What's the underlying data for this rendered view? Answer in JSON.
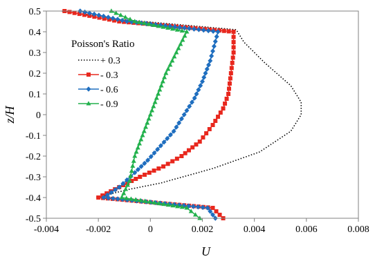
{
  "chart_data": {
    "type": "line",
    "title": "",
    "xlabel": "U",
    "ylabel": "z/H",
    "xlim": [
      -0.004,
      0.008
    ],
    "ylim": [
      -0.5,
      0.5
    ],
    "x_ticks": [
      -0.004,
      -0.002,
      0,
      0.002,
      0.004,
      0.006,
      0.008
    ],
    "x_tick_labels": [
      "-0.004",
      "-0.002",
      "0",
      "0.002",
      "0.004",
      "0.006",
      "0.008"
    ],
    "y_ticks": [
      -0.5,
      -0.4,
      -0.3,
      -0.2,
      -0.1,
      0,
      0.1,
      0.2,
      0.3,
      0.4,
      0.5
    ],
    "y_tick_labels": [
      "-0.5",
      "-0.4",
      "-0.3",
      "-0.2",
      "-0.1",
      "0",
      "0.1",
      "0.2",
      "0.3",
      "0.4",
      "0.5"
    ],
    "grid": false,
    "legend": {
      "title": "Poisson's Ratio",
      "placement": "upper-left"
    },
    "series": [
      {
        "name": "+ 0.3",
        "color": "#000000",
        "style": "dotted",
        "marker": "none",
        "points": [
          [
            0.0028,
            -0.5
          ],
          [
            0.0024,
            -0.45
          ],
          [
            -0.0021,
            -0.4
          ],
          [
            -0.0008,
            -0.36
          ],
          [
            0.0004,
            -0.33
          ],
          [
            0.0024,
            -0.26
          ],
          [
            0.0042,
            -0.18
          ],
          [
            0.0054,
            -0.08
          ],
          [
            0.0058,
            0.0
          ],
          [
            0.0058,
            0.06
          ],
          [
            0.0054,
            0.14
          ],
          [
            0.0044,
            0.25
          ],
          [
            0.0036,
            0.35
          ],
          [
            0.0033,
            0.41
          ],
          [
            -0.0012,
            0.46
          ],
          [
            -0.0034,
            0.5
          ]
        ]
      },
      {
        "name": "- 0.3",
        "color": "#e8281e",
        "style": "solid",
        "marker": "square",
        "points": [
          [
            0.0028,
            -0.5
          ],
          [
            0.0024,
            -0.45
          ],
          [
            -0.002,
            -0.4
          ],
          [
            -0.0012,
            -0.35
          ],
          [
            -0.0004,
            -0.3
          ],
          [
            0.0005,
            -0.25
          ],
          [
            0.0012,
            -0.2
          ],
          [
            0.0019,
            -0.13
          ],
          [
            0.0024,
            -0.05
          ],
          [
            0.0028,
            0.03
          ],
          [
            0.003,
            0.1
          ],
          [
            0.0031,
            0.2
          ],
          [
            0.0032,
            0.3
          ],
          [
            0.0032,
            0.4
          ],
          [
            -0.0012,
            0.45
          ],
          [
            -0.0033,
            0.5
          ]
        ]
      },
      {
        "name": "- 0.6",
        "color": "#1f6ebf",
        "style": "solid",
        "marker": "diamond",
        "points": [
          [
            0.0025,
            -0.5
          ],
          [
            0.0022,
            -0.45
          ],
          [
            -0.0018,
            -0.4
          ],
          [
            -0.0012,
            -0.35
          ],
          [
            -0.0006,
            -0.28
          ],
          [
            -0.0001,
            -0.22
          ],
          [
            0.0004,
            -0.15
          ],
          [
            0.0009,
            -0.08
          ],
          [
            0.0013,
            0.0
          ],
          [
            0.0017,
            0.08
          ],
          [
            0.002,
            0.16
          ],
          [
            0.0023,
            0.26
          ],
          [
            0.0026,
            0.4
          ],
          [
            -0.0009,
            0.45
          ],
          [
            -0.0027,
            0.5
          ]
        ]
      },
      {
        "name": "- 0.9",
        "color": "#22b14c",
        "style": "solid",
        "marker": "triangle",
        "points": [
          [
            0.0019,
            -0.5
          ],
          [
            0.0014,
            -0.45
          ],
          [
            -0.0011,
            -0.4
          ],
          [
            -0.0008,
            -0.32
          ],
          [
            -0.0006,
            -0.2
          ],
          [
            -0.0003,
            -0.1
          ],
          [
            0.0,
            0.0
          ],
          [
            0.0003,
            0.1
          ],
          [
            0.0006,
            0.2
          ],
          [
            0.001,
            0.3
          ],
          [
            0.0014,
            0.4
          ],
          [
            -0.0006,
            0.45
          ],
          [
            -0.0015,
            0.5
          ]
        ]
      }
    ]
  }
}
